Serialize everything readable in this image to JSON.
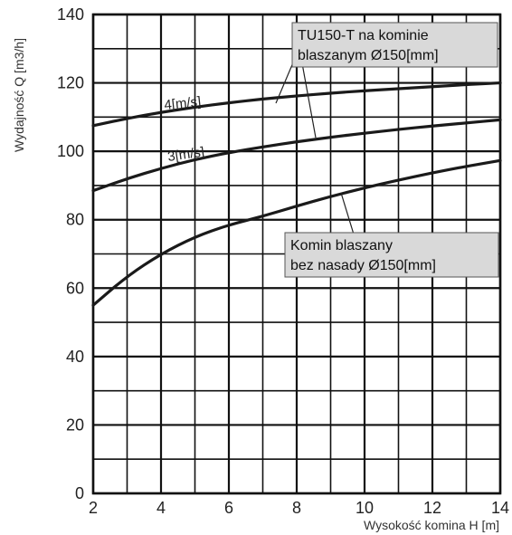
{
  "chart_data": {
    "type": "line",
    "xlabel": "Wysokość komina H [m]",
    "ylabel": "Wydajność Q [m3/h]",
    "xlim": [
      2,
      14
    ],
    "ylim": [
      0,
      140
    ],
    "x_ticks": [
      2,
      4,
      6,
      8,
      10,
      12,
      14
    ],
    "y_ticks": [
      0,
      20,
      40,
      60,
      80,
      100,
      120,
      140
    ],
    "grid": true,
    "series": [
      {
        "name": "4[m/s]",
        "x": [
          2,
          3,
          4,
          5,
          6,
          7,
          8,
          9,
          10,
          11,
          12,
          13,
          14
        ],
        "y": [
          107.5,
          109.6,
          111.4,
          112.9,
          114.2,
          115.3,
          116.2,
          117.0,
          117.7,
          118.3,
          118.9,
          119.5,
          120.0
        ]
      },
      {
        "name": "3[m/s]",
        "x": [
          2,
          3,
          4,
          5,
          6,
          7,
          8,
          9,
          10,
          11,
          12,
          13,
          14
        ],
        "y": [
          88.5,
          92.0,
          95.0,
          97.6,
          99.6,
          101.3,
          102.8,
          104.1,
          105.3,
          106.4,
          107.4,
          108.3,
          109.2
        ]
      },
      {
        "name": "Komin blaszany bez nasady Ø150[mm]",
        "x": [
          2,
          3,
          4,
          5,
          6,
          7,
          8,
          9,
          10,
          11,
          12,
          13,
          14
        ],
        "y": [
          55.0,
          63.5,
          70.0,
          75.0,
          78.5,
          81.0,
          84.0,
          86.8,
          89.3,
          91.6,
          93.7,
          95.6,
          97.3
        ]
      }
    ],
    "curve_labels": [
      "4[m/s]",
      "3[m/s]"
    ],
    "annotations": [
      {
        "lines": [
          "TU150-T na kominie",
          "blaszanym Ø150[mm]"
        ]
      },
      {
        "lines": [
          "Komin blaszany",
          "bez nasady Ø150[mm]"
        ]
      }
    ]
  }
}
